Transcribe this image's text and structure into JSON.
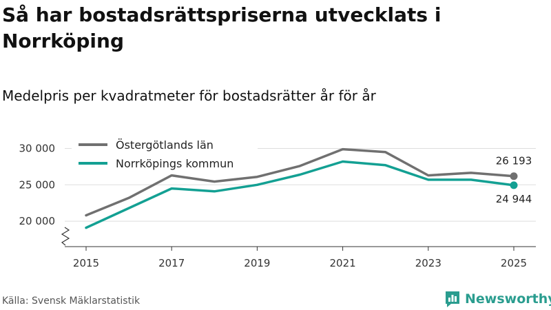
{
  "title": "Så har bostadsrättspriserna utvecklats i Norrköping",
  "subtitle": "Medelpris per kvadratmeter för bostadsrätter år för år",
  "source": "Källa: Svensk Mäklarstatistik",
  "brand": {
    "name": "Newsworthy",
    "logo_icon": "bar-chart-logo-icon",
    "color": "#2a9d8f"
  },
  "chart_data": {
    "type": "line",
    "x": [
      2015,
      2016,
      2017,
      2018,
      2019,
      2020,
      2021,
      2022,
      2023,
      2024,
      2025
    ],
    "xticks": [
      "2015",
      "2017",
      "2019",
      "2021",
      "2023",
      "2025"
    ],
    "yticks": [
      "20 000",
      "25 000",
      "30 000"
    ],
    "ylim": [
      16500,
      31000
    ],
    "axis_break": true,
    "grid": true,
    "legend": "top-left",
    "series": [
      {
        "name": "Östergötlands län",
        "color": "#707070",
        "values": [
          20800,
          23200,
          26300,
          25450,
          26100,
          27600,
          29900,
          29500,
          26300,
          26650,
          26193
        ],
        "end_label": "26 193"
      },
      {
        "name": "Norrköpings kommun",
        "color": "#13a093",
        "values": [
          19100,
          21800,
          24500,
          24100,
          25000,
          26400,
          28200,
          27700,
          25700,
          25700,
          24944
        ],
        "end_label": "24 944"
      }
    ]
  }
}
